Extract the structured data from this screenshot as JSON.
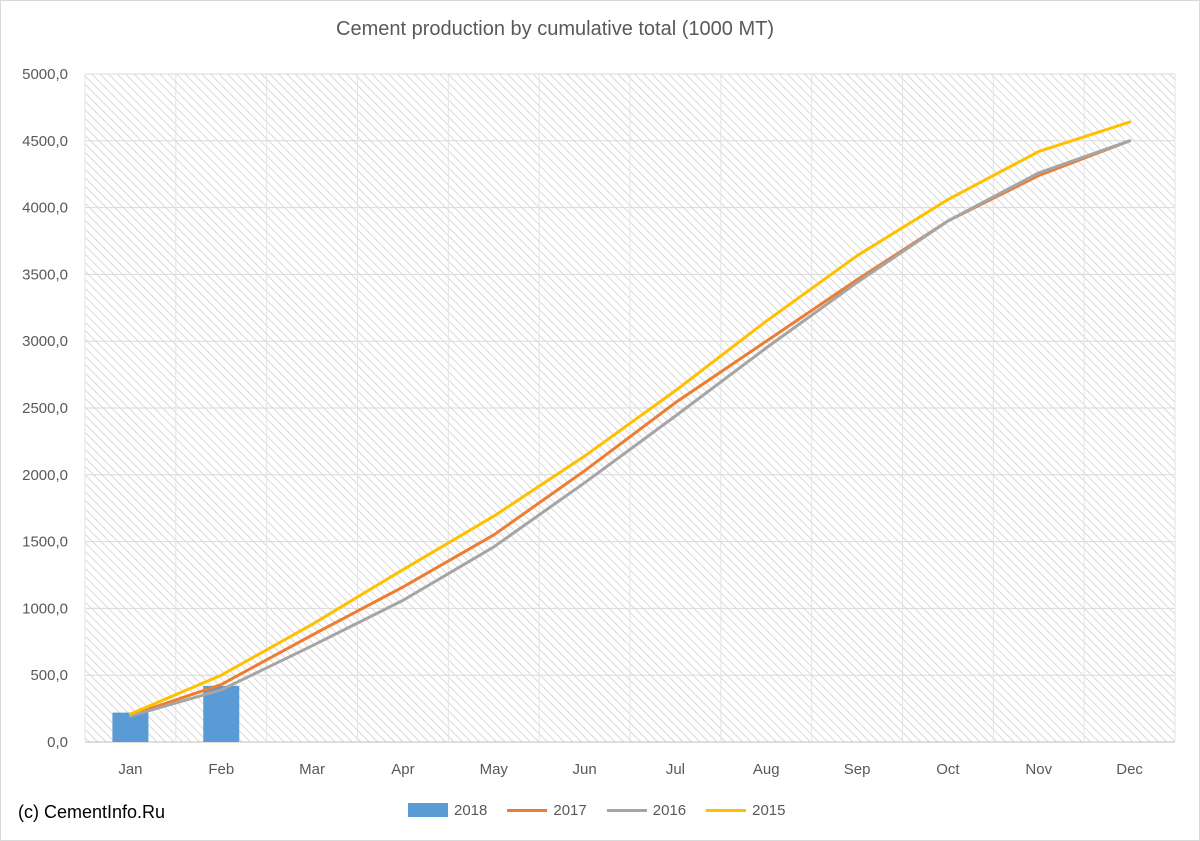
{
  "chart_data": {
    "type": "bar",
    "title": "Cement production by cumulative total (1000 MT)",
    "categories": [
      "Jan",
      "Feb",
      "Mar",
      "Apr",
      "May",
      "Jun",
      "Jul",
      "Aug",
      "Sep",
      "Oct",
      "Nov",
      "Dec"
    ],
    "ylim": [
      0,
      5000
    ],
    "yticks": [
      "0,0",
      "500,0",
      "1000,0",
      "1500,0",
      "2000,0",
      "2500,0",
      "3000,0",
      "3500,0",
      "4000,0",
      "4500,0",
      "5000,0"
    ],
    "ytick_values": [
      0,
      500,
      1000,
      1500,
      2000,
      2500,
      3000,
      3500,
      4000,
      4500,
      5000
    ],
    "grid": true,
    "legend_position": "bottom",
    "series": [
      {
        "name": "2018",
        "type": "bar",
        "color": "#5b9bd5",
        "values": [
          220,
          420,
          null,
          null,
          null,
          null,
          null,
          null,
          null,
          null,
          null,
          null
        ]
      },
      {
        "name": "2017",
        "type": "line",
        "color": "#ed7d31",
        "values": [
          200,
          430,
          800,
          1160,
          1550,
          2030,
          2540,
          3000,
          3460,
          3900,
          4240,
          4500
        ]
      },
      {
        "name": "2016",
        "type": "line",
        "color": "#a5a5a5",
        "values": [
          195,
          390,
          720,
          1060,
          1460,
          1940,
          2440,
          2950,
          3440,
          3900,
          4260,
          4500
        ]
      },
      {
        "name": "2015",
        "type": "line",
        "color": "#ffc000",
        "values": [
          210,
          500,
          880,
          1290,
          1690,
          2140,
          2630,
          3150,
          3640,
          4060,
          4420,
          4640
        ]
      }
    ]
  },
  "footer": {
    "copyright": "(c) CementInfo.Ru"
  }
}
